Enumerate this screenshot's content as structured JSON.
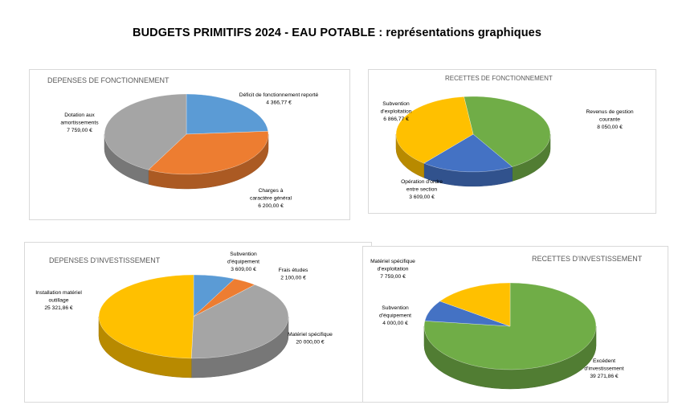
{
  "title": "BUDGETS PRIMITIFS 2024 - EAU POTABLE : représentations graphiques",
  "chart_data": [
    {
      "type": "pie",
      "title": "DEPENSES DE FONCTIONNEMENT",
      "series": [
        {
          "name": "Déficit de fonctionnement reporté",
          "value": 4366.77,
          "value_label": "4 366,77 €",
          "color": "#5b9bd5"
        },
        {
          "name": "Charges à caractère général",
          "value": 6200.0,
          "value_label": "6 200,00 €",
          "color": "#ed7d31"
        },
        {
          "name": "Dotation aux amortissements",
          "value": 7759.0,
          "value_label": "7 759,00 €",
          "color": "#a5a5a5"
        }
      ]
    },
    {
      "type": "pie",
      "title": "RECETTES DE FONCTIONNEMENT",
      "series": [
        {
          "name": "Revenus de gestion courante",
          "value": 8050.0,
          "value_label": "8 050,00 €",
          "color": "#70ad47"
        },
        {
          "name": "Opération d'ordre entre section",
          "value": 3609.0,
          "value_label": "3 609,00 €",
          "color": "#4472c4"
        },
        {
          "name": "Subvention d'exploitation",
          "value": 6866.77,
          "value_label": "6 866,77 €",
          "color": "#ffc000"
        }
      ]
    },
    {
      "type": "pie",
      "title": "DEPENSES D'INVESTISSEMENT",
      "series": [
        {
          "name": "Subvention d'équipement",
          "value": 3609.0,
          "value_label": "3 609,00 €",
          "color": "#5b9bd5"
        },
        {
          "name": "Frais études",
          "value": 2100.0,
          "value_label": "2 100,00 €",
          "color": "#ed7d31"
        },
        {
          "name": "Matériel spécifique",
          "value": 20000.0,
          "value_label": "20 000,00 €",
          "color": "#a5a5a5"
        },
        {
          "name": "Installation matériel outillage",
          "value": 25321.86,
          "value_label": "25 321,86 €",
          "color": "#ffc000"
        }
      ]
    },
    {
      "type": "pie",
      "title": "RECETTES D'INVESTISSEMENT",
      "series": [
        {
          "name": "Excédent d'investissement",
          "value": 39271.86,
          "value_label": "39 271,86 €",
          "color": "#70ad47"
        },
        {
          "name": "Subvention d'équipement",
          "value": 4000.0,
          "value_label": "4 000,00 €",
          "color": "#4472c4"
        },
        {
          "name": "Matériel spécifique d'exploitation",
          "value": 7759.0,
          "value_label": "7 759,00 €",
          "color": "#ffc000"
        }
      ]
    }
  ]
}
